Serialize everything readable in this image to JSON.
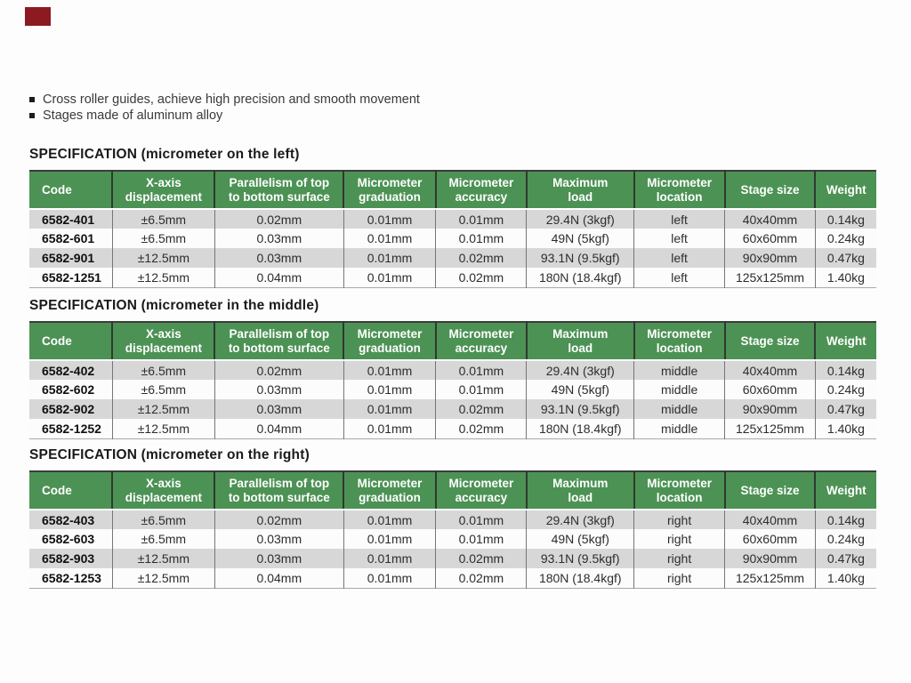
{
  "page": {
    "bullets": [
      "Cross roller guides, achieve high precision and smooth movement",
      "Stages made of aluminum alloy"
    ]
  },
  "table_columns": [
    "Code",
    "X-axis\ndisplacement",
    "Parallelism of top\nto bottom surface",
    "Micrometer\ngraduation",
    "Micrometer\naccuracy",
    "Maximum\nload",
    "Micrometer\nlocation",
    "Stage size",
    "Weight"
  ],
  "tables": [
    {
      "title": "SPECIFICATION (micrometer on the left)",
      "rows": [
        [
          "6582-401",
          "±6.5mm",
          "0.02mm",
          "0.01mm",
          "0.01mm",
          "29.4N (3kgf)",
          "left",
          "40x40mm",
          "0.14kg"
        ],
        [
          "6582-601",
          "±6.5mm",
          "0.03mm",
          "0.01mm",
          "0.01mm",
          "49N (5kgf)",
          "left",
          "60x60mm",
          "0.24kg"
        ],
        [
          "6582-901",
          "±12.5mm",
          "0.03mm",
          "0.01mm",
          "0.02mm",
          "93.1N (9.5kgf)",
          "left",
          "90x90mm",
          "0.47kg"
        ],
        [
          "6582-1251",
          "±12.5mm",
          "0.04mm",
          "0.01mm",
          "0.02mm",
          "180N (18.4kgf)",
          "left",
          "125x125mm",
          "1.40kg"
        ]
      ]
    },
    {
      "title": "SPECIFICATION (micrometer in the middle)",
      "rows": [
        [
          "6582-402",
          "±6.5mm",
          "0.02mm",
          "0.01mm",
          "0.01mm",
          "29.4N (3kgf)",
          "middle",
          "40x40mm",
          "0.14kg"
        ],
        [
          "6582-602",
          "±6.5mm",
          "0.03mm",
          "0.01mm",
          "0.01mm",
          "49N (5kgf)",
          "middle",
          "60x60mm",
          "0.24kg"
        ],
        [
          "6582-902",
          "±12.5mm",
          "0.03mm",
          "0.01mm",
          "0.02mm",
          "93.1N (9.5kgf)",
          "middle",
          "90x90mm",
          "0.47kg"
        ],
        [
          "6582-1252",
          "±12.5mm",
          "0.04mm",
          "0.01mm",
          "0.02mm",
          "180N (18.4kgf)",
          "middle",
          "125x125mm",
          "1.40kg"
        ]
      ]
    },
    {
      "title": "SPECIFICATION (micrometer on the right)",
      "rows": [
        [
          "6582-403",
          "±6.5mm",
          "0.02mm",
          "0.01mm",
          "0.01mm",
          "29.4N (3kgf)",
          "right",
          "40x40mm",
          "0.14kg"
        ],
        [
          "6582-603",
          "±6.5mm",
          "0.03mm",
          "0.01mm",
          "0.01mm",
          "49N (5kgf)",
          "right",
          "60x60mm",
          "0.24kg"
        ],
        [
          "6582-903",
          "±12.5mm",
          "0.03mm",
          "0.01mm",
          "0.02mm",
          "93.1N (9.5kgf)",
          "right",
          "90x90mm",
          "0.47kg"
        ],
        [
          "6582-1253",
          "±12.5mm",
          "0.04mm",
          "0.01mm",
          "0.02mm",
          "180N (18.4kgf)",
          "right",
          "125x125mm",
          "1.40kg"
        ]
      ]
    }
  ],
  "colors": {
    "page_bg": "#fdfdfd",
    "red_tab": "#8b1b20",
    "header_bg": "#4c9254",
    "header_text": "#ffffff",
    "row_stripe": "#d7d7d7",
    "row_plain": "#fcfcfc",
    "grid_line": "#767676",
    "grid_line_header": "#2f3a30",
    "table_top_border": "#3c3c3c",
    "table_bottom_border": "#a9a9a9",
    "body_text": "#2d2d2d",
    "code_text": "#101010",
    "title_text": "#1a1a1a",
    "bullet_text": "#3a3a3a"
  }
}
